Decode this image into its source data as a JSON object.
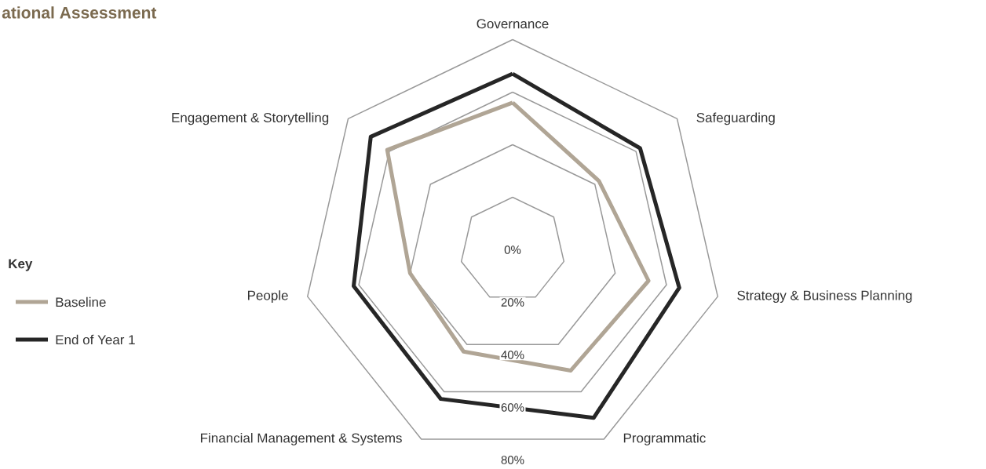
{
  "chart_data": {
    "type": "radar",
    "title": "ational Assessment",
    "legend_title": "Key",
    "categories": [
      "Governance",
      "Safeguarding",
      "Strategy & Business Planning",
      "Programmatic",
      "Financial Management & Systems",
      "People",
      "Engagement & Storytelling"
    ],
    "series": [
      {
        "name": "Baseline",
        "color": "#b0a595",
        "values": [
          56,
          42,
          53,
          51,
          43,
          40,
          61
        ]
      },
      {
        "name": "End of Year 1",
        "color": "#262626",
        "values": [
          67,
          62,
          65,
          71,
          63,
          62,
          69
        ]
      }
    ],
    "ylim": [
      0,
      80
    ],
    "yticks": [
      {
        "value": 0,
        "label": "0%"
      },
      {
        "value": 20,
        "label": "20%"
      },
      {
        "value": 40,
        "label": "40%"
      },
      {
        "value": 60,
        "label": "60%"
      },
      {
        "value": 80,
        "label": "80%"
      }
    ],
    "grid": true,
    "legend": "left",
    "marker": "none",
    "line_style": "solid"
  }
}
